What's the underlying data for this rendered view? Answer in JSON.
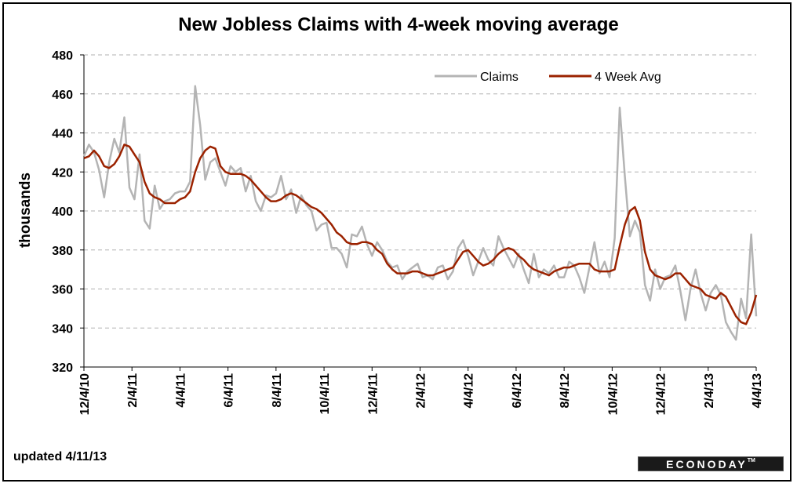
{
  "chart_data": {
    "type": "line",
    "title": "New Jobless Claims with 4-week moving average",
    "ylabel": "thousands",
    "xlabel": "",
    "ylim": [
      320,
      480
    ],
    "yticks": [
      320,
      340,
      360,
      380,
      400,
      420,
      440,
      460,
      480
    ],
    "xtick_labels": [
      "12/4/10",
      "2/4/11",
      "4/4/11",
      "6/4/11",
      "8/4/11",
      "10/4/11",
      "12/4/11",
      "2/4/12",
      "4/4/12",
      "6/4/12",
      "8/4/12",
      "10/4/12",
      "12/4/12",
      "2/4/13",
      "4/4/13"
    ],
    "grid": "horizontal dashed",
    "legend_position": "top-right",
    "colors": {
      "claims": "#b4b4b4",
      "avg": "#9b2200"
    },
    "series": [
      {
        "name": "Claims",
        "values": [
          428,
          434,
          430,
          421,
          407,
          425,
          437,
          430,
          448,
          412,
          406,
          429,
          395,
          391,
          413,
          401,
          405,
          406,
          409,
          410,
          410,
          415,
          464,
          444,
          416,
          425,
          427,
          420,
          413,
          423,
          420,
          422,
          410,
          418,
          405,
          400,
          408,
          407,
          409,
          418,
          406,
          411,
          399,
          408,
          403,
          400,
          390,
          393,
          394,
          381,
          381,
          378,
          371,
          388,
          387,
          392,
          383,
          377,
          384,
          380,
          374,
          371,
          372,
          365,
          369,
          371,
          373,
          366,
          367,
          365,
          371,
          372,
          365,
          369,
          381,
          385,
          377,
          367,
          374,
          381,
          375,
          372,
          387,
          381,
          376,
          371,
          378,
          370,
          363,
          378,
          366,
          370,
          368,
          372,
          366,
          366,
          374,
          372,
          366,
          358,
          371,
          384,
          368,
          374,
          366,
          386,
          453,
          418,
          387,
          395,
          389,
          362,
          354,
          370,
          360,
          366,
          367,
          372,
          359,
          344,
          360,
          370,
          358,
          349,
          358,
          362,
          357,
          343,
          338,
          334,
          355,
          345,
          388,
          346
        ],
        "label": "Claims"
      },
      {
        "name": "4 Week Avg",
        "values": [
          427,
          428,
          431,
          428,
          423,
          422,
          424,
          428,
          434,
          433,
          429,
          425,
          415,
          409,
          407,
          406,
          404,
          404,
          404,
          406,
          407,
          410,
          420,
          427,
          431,
          433,
          432,
          423,
          420,
          419,
          419,
          419,
          418,
          416,
          413,
          410,
          407,
          405,
          405,
          406,
          408,
          409,
          408,
          406,
          404,
          402,
          401,
          399,
          396,
          393,
          389,
          387,
          384,
          383,
          383,
          384,
          384,
          383,
          380,
          378,
          373,
          370,
          368,
          368,
          368,
          369,
          369,
          368,
          367,
          367,
          368,
          369,
          370,
          371,
          375,
          379,
          380,
          377,
          374,
          372,
          373,
          375,
          378,
          380,
          381,
          380,
          377,
          375,
          372,
          370,
          369,
          368,
          367,
          369,
          370,
          371,
          371,
          372,
          373,
          373,
          373,
          370,
          369,
          369,
          369,
          370,
          382,
          393,
          400,
          402,
          395,
          379,
          370,
          367,
          366,
          365,
          366,
          368,
          368,
          365,
          362,
          361,
          360,
          357,
          356,
          355,
          358,
          356,
          351,
          346,
          343,
          342,
          348,
          357
        ],
        "label": "4 Week Avg"
      }
    ]
  },
  "footnote": "updated 4/11/13",
  "brand": {
    "name": "ECONODAY",
    "mark": "TM"
  }
}
